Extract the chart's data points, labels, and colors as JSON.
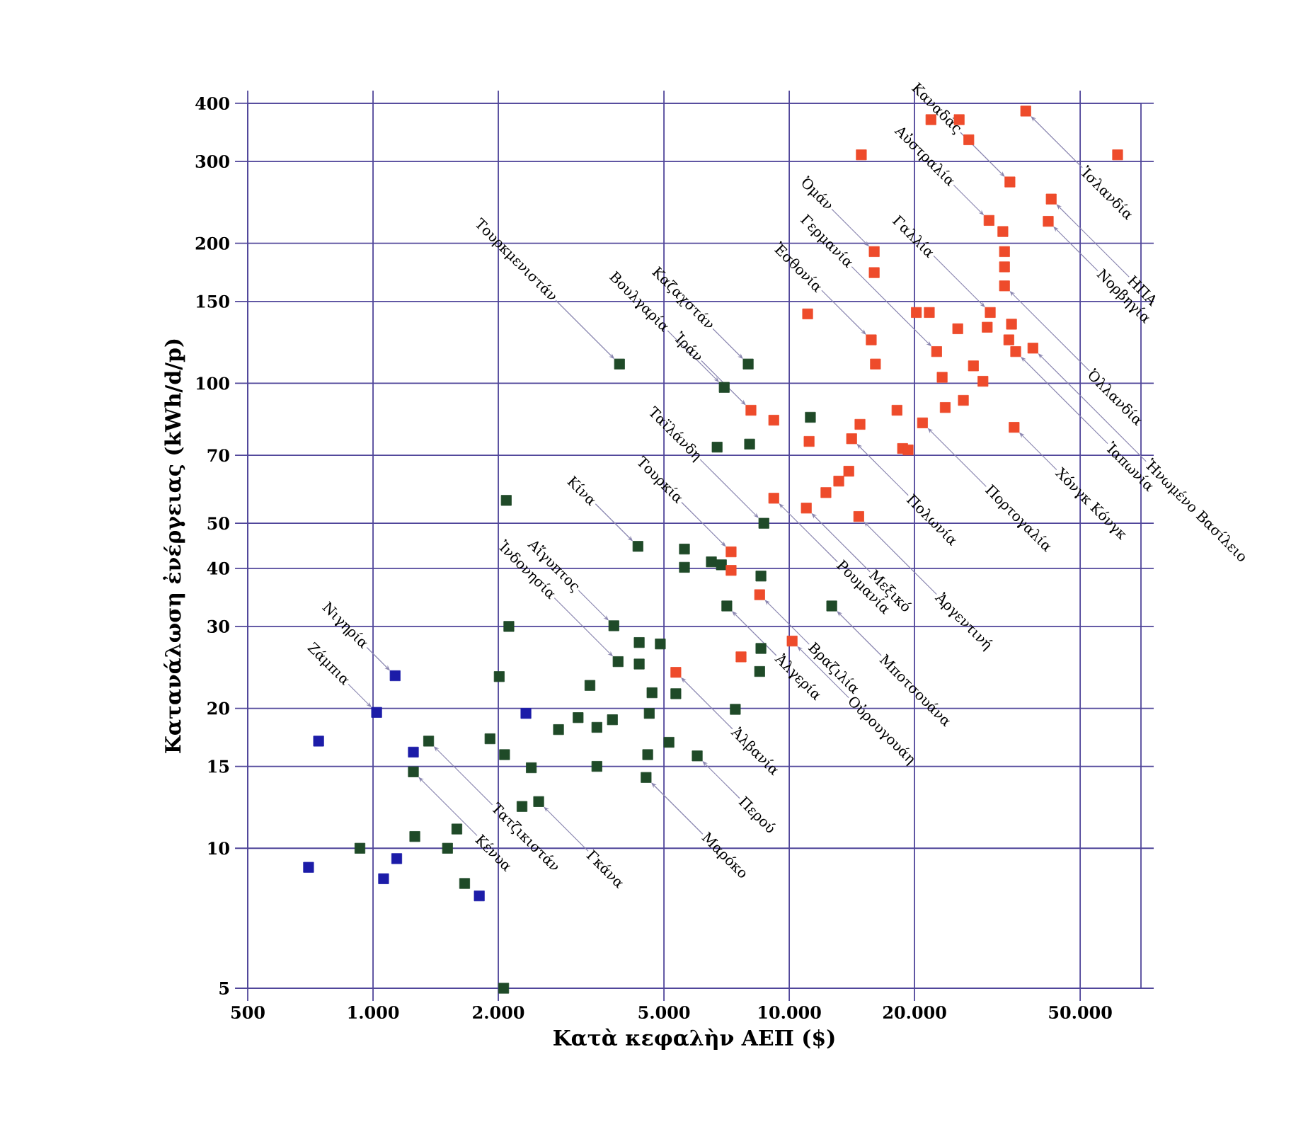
{
  "chart_data": {
    "type": "scatter",
    "xlabel": "Κατὰ κεφαλὴν ΑΕΠ ($)",
    "ylabel": "Κατανάλωση ἐνέργειας (kWh/d/p)",
    "log": "xy",
    "grid": true,
    "marker": "square",
    "xlim": [
      500,
      70000
    ],
    "ylim": [
      5,
      400
    ],
    "xticks": [
      500,
      {
        "value": 1000,
        "label": "1.000"
      },
      {
        "value": 2000,
        "label": "2.000"
      },
      {
        "value": 5000,
        "label": "5.000"
      },
      {
        "value": 10000,
        "label": "10.000"
      },
      {
        "value": 20000,
        "label": "20.000"
      },
      {
        "value": 50000,
        "label": "50.000"
      }
    ],
    "yticks": [
      5,
      10,
      15,
      20,
      30,
      40,
      50,
      70,
      100,
      150,
      200,
      300,
      400
    ],
    "series": [
      {
        "color": "#1c1ca8",
        "x": [
          700,
          740,
          1020,
          1130,
          1250,
          1140,
          1060,
          1800,
          2330
        ],
        "values": [
          9.1,
          17,
          19.6,
          23.5,
          16.1,
          9.5,
          8.6,
          7.9,
          19.5
        ]
      },
      {
        "color": "#1f4a28",
        "x": [
          2090,
          2120,
          2010,
          2790,
          1360,
          1910,
          2070,
          2400,
          1250,
          2280,
          2500,
          1590,
          1260,
          930,
          1510,
          1660,
          2060,
          8690,
          4330,
          5600,
          5600,
          6500,
          6870,
          8550,
          12650,
          7080,
          3790,
          4360,
          4900,
          3880,
          4360,
          8550,
          8490,
          3320,
          4680,
          5340,
          4610,
          7420,
          3110,
          3760,
          3450,
          5140,
          4570,
          6010,
          3450,
          4530,
          3910,
          7970,
          6980,
          11240,
          6710,
          8030
        ],
        "values": [
          56,
          30,
          23.4,
          18,
          17,
          17.2,
          15.9,
          14.9,
          14.6,
          12.3,
          12.6,
          11,
          10.6,
          10,
          10,
          8.4,
          5,
          50,
          44.6,
          44,
          40.2,
          41.3,
          40.7,
          38.5,
          33.2,
          33.2,
          30.1,
          27.7,
          27.5,
          25.2,
          24.9,
          26.9,
          24,
          22.4,
          21.6,
          21.5,
          19.5,
          19.9,
          19.1,
          18.9,
          18.2,
          16.9,
          15.9,
          15.8,
          15,
          14.2,
          110,
          110,
          98,
          84.5,
          72.9,
          74
        ]
      },
      {
        "color": "#ee4b2b",
        "x": [
          14900,
          16000,
          16000,
          11070,
          15740,
          16110,
          8090,
          9180,
          11160,
          18150,
          14790,
          14120,
          18720,
          13900,
          13150,
          12250,
          9180,
          10990,
          14690,
          7250,
          7250,
          8490,
          10160,
          7660,
          5340,
          21900,
          25600,
          27000,
          37000,
          61500,
          33900,
          42600,
          41900,
          30200,
          32600,
          32900,
          32900,
          32900,
          20200,
          21700,
          30400,
          29900,
          25400,
          34200,
          33700,
          35000,
          38500,
          22600,
          27700,
          29200,
          23300,
          26200,
          23700,
          20900,
          34700,
          19300
        ],
        "values": [
          310,
          192,
          173,
          141,
          124,
          110,
          87.5,
          83.3,
          75,
          87.5,
          81.6,
          76,
          72.4,
          64.7,
          61.6,
          58.2,
          56.6,
          53.9,
          51.7,
          43.4,
          39.6,
          35.1,
          27.9,
          25.8,
          23.9,
          369,
          369,
          334,
          385,
          310,
          271,
          249,
          223,
          224,
          212,
          192,
          178,
          162,
          142,
          142,
          142,
          132,
          131,
          134,
          124,
          117,
          119,
          117,
          109,
          101,
          103,
          91.9,
          88.7,
          82.2,
          80.4,
          71.9
        ]
      }
    ],
    "annotations": [
      {
        "text": "Καναδάς",
        "x": 33900,
        "y": 271
      },
      {
        "text": "Ἰσλανδία",
        "x": 37000,
        "y": 385
      },
      {
        "text": "Αὐστραλία",
        "x": 30200,
        "y": 224
      },
      {
        "text": "ΗΠΑ",
        "x": 42600,
        "y": 249
      },
      {
        "text": "Νορβηγία",
        "x": 41900,
        "y": 223
      },
      {
        "text": "Γαλλία",
        "x": 30400,
        "y": 142
      },
      {
        "text": "Γερμανία",
        "x": 22600,
        "y": 117
      },
      {
        "text": "Ὀλλανδία",
        "x": 32900,
        "y": 162
      },
      {
        "text": "Ἰαπωνία",
        "x": 35000,
        "y": 117
      },
      {
        "text": "Ἡνωμένο Βασίλειο",
        "x": 38500,
        "y": 119
      },
      {
        "text": "Χόνγκ Κόνγκ",
        "x": 34700,
        "y": 80.4
      },
      {
        "text": "Πορτογαλία",
        "x": 20900,
        "y": 82.2
      },
      {
        "text": "Πολωνία",
        "x": 14120,
        "y": 76
      },
      {
        "text": "Ἀργεντινή",
        "x": 14690,
        "y": 51.7
      },
      {
        "text": "Μεξικό",
        "x": 10990,
        "y": 53.9
      },
      {
        "text": "Ρουμανία",
        "x": 9180,
        "y": 56.6
      },
      {
        "text": "Μποτσουάνα",
        "x": 12650,
        "y": 33.2
      },
      {
        "text": "Βραζιλία",
        "x": 8490,
        "y": 35.1
      },
      {
        "text": "Οὐρουγουάη",
        "x": 10160,
        "y": 27.9
      },
      {
        "text": "Ἀλγερία",
        "x": 7080,
        "y": 33.2
      },
      {
        "text": "Ἀλβανία",
        "x": 5340,
        "y": 23.9
      },
      {
        "text": "Περού",
        "x": 6010,
        "y": 15.8
      },
      {
        "text": "Μαρόκο",
        "x": 4530,
        "y": 14.2
      },
      {
        "text": "Γκάνα",
        "x": 2500,
        "y": 12.6
      },
      {
        "text": "Τατζικιστάν",
        "x": 1360,
        "y": 17
      },
      {
        "text": "Κένυα",
        "x": 1250,
        "y": 14.6
      },
      {
        "text": "Ὀμάν",
        "x": 16000,
        "y": 192
      },
      {
        "text": "Ἐσθονία",
        "x": 15740,
        "y": 124
      },
      {
        "text": "Καζαχστάν",
        "x": 7970,
        "y": 110
      },
      {
        "text": "Βουλγαρία",
        "x": 6980,
        "y": 98
      },
      {
        "text": "Ἰράν",
        "x": 8090,
        "y": 87.5
      },
      {
        "text": "Ταϊλάνδη",
        "x": 8690,
        "y": 50
      },
      {
        "text": "Τουρκία",
        "x": 7250,
        "y": 43.4
      },
      {
        "text": "Κίνα",
        "x": 4330,
        "y": 44.6
      },
      {
        "text": "Αἴγυπτος",
        "x": 3790,
        "y": 30.1
      },
      {
        "text": "Ἰνδονησία",
        "x": 3880,
        "y": 25.2
      },
      {
        "text": "Τουρκμενιστάν",
        "x": 3910,
        "y": 110
      },
      {
        "text": "Νιγηρία",
        "x": 1130,
        "y": 23.5
      },
      {
        "text": "Ζάμπια",
        "x": 1020,
        "y": 19.6
      }
    ]
  }
}
